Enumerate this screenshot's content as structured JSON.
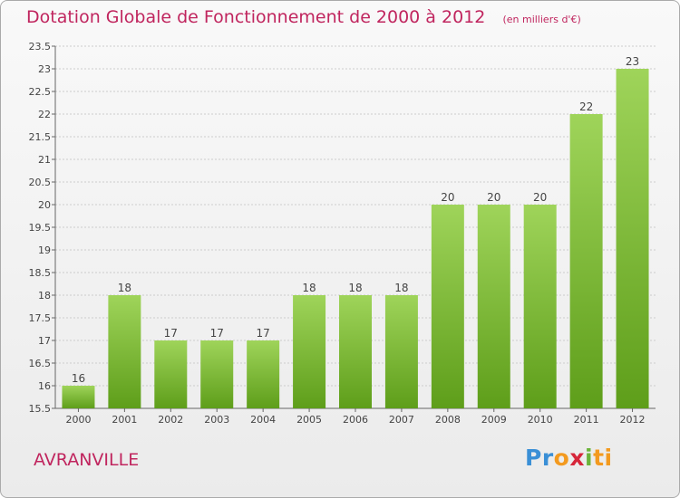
{
  "title": "Dotation Globale de Fonctionnement de 2000 à 2012",
  "subtitle": "(en milliers d'€)",
  "commune": "AVRANVILLE",
  "logo": {
    "p1": "Pr",
    "p2": "o",
    "p3": "x",
    "p4": "i",
    "p5": "ti"
  },
  "colors": {
    "bar_top": "#9fd45a",
    "bar_bottom": "#5e9e1a",
    "title": "#c0255e",
    "grid": "#cccccc"
  },
  "chart_data": {
    "type": "bar",
    "title": "Dotation Globale de Fonctionnement de 2000 à 2012",
    "subtitle": "(en milliers d'€)",
    "categories": [
      "2000",
      "2001",
      "2002",
      "2003",
      "2004",
      "2005",
      "2006",
      "2007",
      "2008",
      "2009",
      "2010",
      "2011",
      "2012"
    ],
    "values": [
      16,
      18,
      17,
      17,
      17,
      18,
      18,
      18,
      20,
      20,
      20,
      22,
      23
    ],
    "labels": [
      "16",
      "18",
      "17",
      "17",
      "17",
      "18",
      "18",
      "18",
      "20",
      "20",
      "20",
      "22",
      "23"
    ],
    "ylim": [
      15.5,
      23.5
    ],
    "yticks": [
      "15.5",
      "16",
      "16.5",
      "17",
      "17.5",
      "18",
      "18.5",
      "19",
      "19.5",
      "20",
      "20.5",
      "21",
      "21.5",
      "22",
      "22.5",
      "23",
      "23.5"
    ],
    "grid": true
  }
}
